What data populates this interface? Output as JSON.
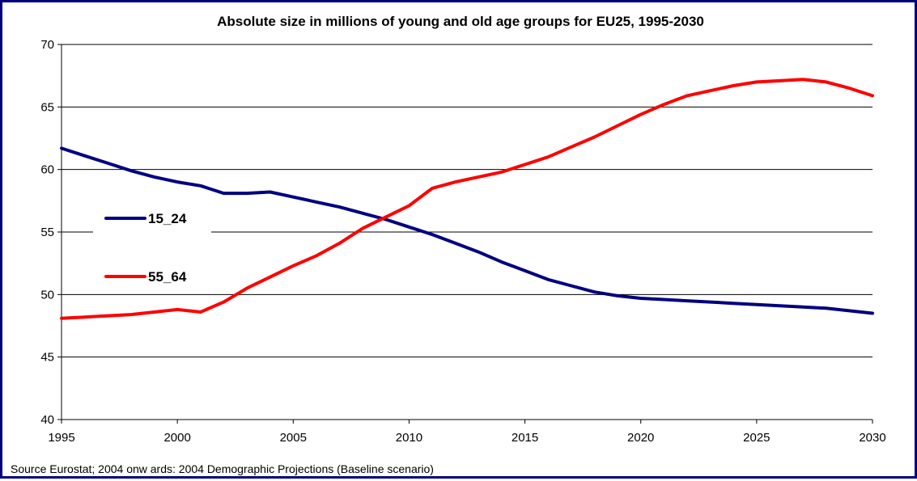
{
  "chart_data": {
    "type": "line",
    "title": "Absolute size in millions of young and old age groups for EU25, 1995-2030",
    "source_note": "Source Eurostat; 2004 onw ards: 2004 Demographic Projections (Baseline scenario)",
    "xlabel": "",
    "ylabel": "",
    "xlim": [
      1995,
      2030
    ],
    "ylim": [
      40,
      70
    ],
    "x_ticks": [
      "1995",
      "2000",
      "2005",
      "2010",
      "2015",
      "2020",
      "2025",
      "2030"
    ],
    "y_ticks": [
      "40",
      "45",
      "50",
      "55",
      "60",
      "65",
      "70"
    ],
    "grid": "horizontal",
    "legend_position": "left",
    "x": [
      1995,
      1996,
      1997,
      1998,
      1999,
      2000,
      2001,
      2002,
      2003,
      2004,
      2005,
      2006,
      2007,
      2008,
      2009,
      2010,
      2011,
      2012,
      2013,
      2014,
      2015,
      2016,
      2017,
      2018,
      2019,
      2020,
      2021,
      2022,
      2023,
      2024,
      2025,
      2026,
      2027,
      2028,
      2029,
      2030
    ],
    "series": [
      {
        "name": "15_24",
        "color": "#000080",
        "values": [
          61.7,
          61.1,
          60.5,
          59.9,
          59.4,
          59.0,
          58.7,
          58.1,
          58.1,
          58.2,
          57.8,
          57.4,
          57.0,
          56.5,
          56.0,
          55.4,
          54.8,
          54.1,
          53.4,
          52.6,
          51.9,
          51.2,
          50.7,
          50.2,
          49.9,
          49.7,
          49.6,
          49.5,
          49.4,
          49.3,
          49.2,
          49.1,
          49.0,
          48.9,
          48.7,
          48.5
        ]
      },
      {
        "name": "55_64",
        "color": "#ff0000",
        "values": [
          48.1,
          48.2,
          48.3,
          48.4,
          48.6,
          48.8,
          48.6,
          49.4,
          50.5,
          51.4,
          52.3,
          53.1,
          54.1,
          55.3,
          56.2,
          57.1,
          58.5,
          59.0,
          59.4,
          59.8,
          60.4,
          61.0,
          61.8,
          62.6,
          63.5,
          64.4,
          65.2,
          65.9,
          66.3,
          66.7,
          67.0,
          67.1,
          67.2,
          67.0,
          66.5,
          65.9
        ]
      }
    ]
  }
}
